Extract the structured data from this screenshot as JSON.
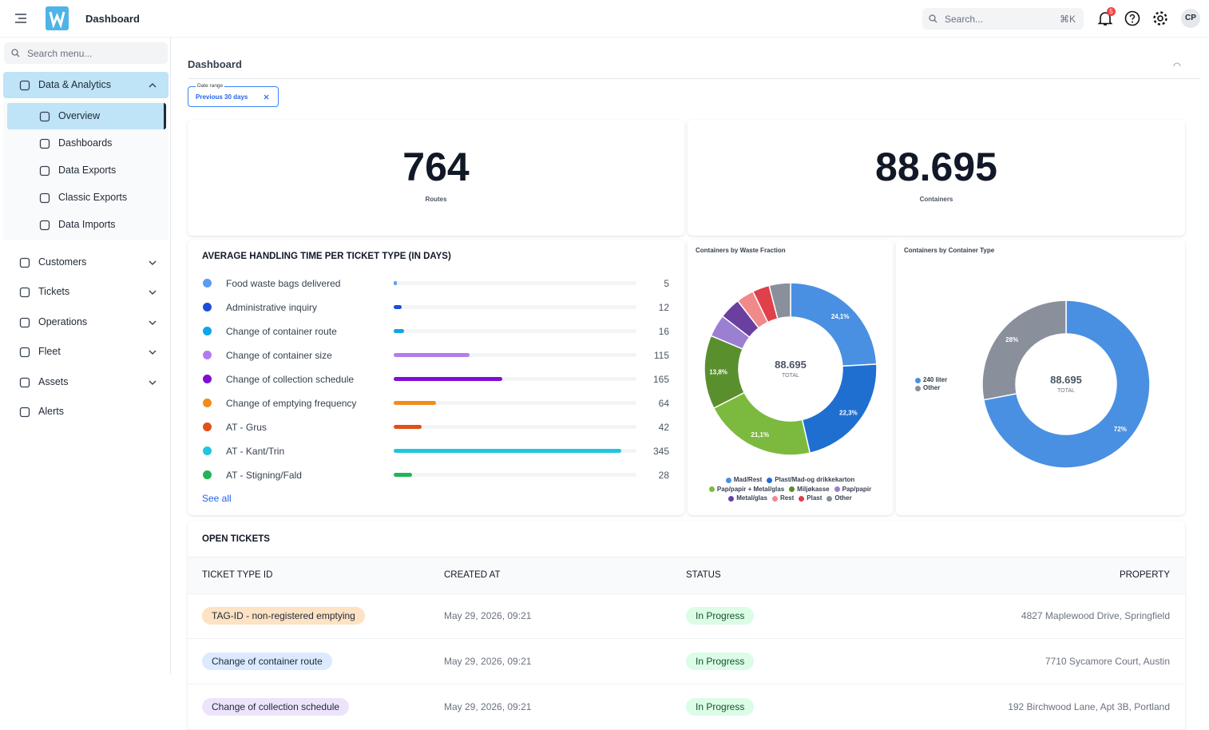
{
  "header": {
    "title": "Dashboard",
    "search_placeholder": "Search...",
    "search_shortcut": "⌘K",
    "notification_count": 5,
    "user_initials": "CP"
  },
  "sidebar": {
    "search_placeholder": "Search menu...",
    "groups": [
      {
        "label": "Data & Analytics",
        "expandable": true,
        "items": [
          "Overview",
          "Dashboards",
          "Data Exports",
          "Classic Exports",
          "Data Imports"
        ]
      },
      {
        "label": "Customers",
        "expandable": true
      },
      {
        "label": "Tickets",
        "expandable": true
      },
      {
        "label": "Operations",
        "expandable": true
      },
      {
        "label": "Fleet",
        "expandable": true
      },
      {
        "label": "Assets",
        "expandable": true
      },
      {
        "label": "Alerts",
        "expandable": false
      }
    ]
  },
  "page": {
    "title": "Dashboard",
    "filter": {
      "label": "Date range",
      "value": "Previous 30 days"
    }
  },
  "kpis": [
    {
      "value": "764",
      "label": "Routes"
    },
    {
      "value": "88.695",
      "label": "Containers"
    }
  ],
  "chart_data": [
    {
      "type": "bar",
      "orientation": "horizontal",
      "title": "AVERAGE HANDLING TIME PER TICKET TYPE (IN DAYS)",
      "categories": [
        "Food waste bags delivered",
        "Administrative inquiry",
        "Change of container route",
        "Change of container size",
        "Change of collection schedule",
        "Change of emptying frequency",
        "AT - Grus",
        "AT - Kant/Trin",
        "AT - Stigning/Fald"
      ],
      "values": [
        5,
        12,
        16,
        115,
        165,
        64,
        42,
        345,
        28
      ],
      "colors": [
        "#5b9cf0",
        "#1d4ed8",
        "#0ea5e9",
        "#b57bee",
        "#7e0fd4",
        "#f28c1c",
        "#e0501b",
        "#22c5e0",
        "#22b455"
      ],
      "link": "See all"
    },
    {
      "type": "donut",
      "title": "Containers by Waste Fraction",
      "center_value": "88.695",
      "center_label": "TOTAL",
      "categories": [
        "Mad/Rest",
        "Plast/Mad-og drikkekarton",
        "Pap/papir + Metal/glas",
        "Miljøkasse",
        "Pap/papir",
        "Metal/glas",
        "Rest",
        "Plast",
        "Other"
      ],
      "values": [
        24.1,
        22.3,
        21.1,
        13.8,
        4.2,
        4.0,
        3.3,
        3.2,
        4.0
      ],
      "value_labels": [
        "24,1%",
        "22,3%",
        "21,1%",
        "13,8%",
        null,
        null,
        null,
        null,
        null
      ],
      "colors": [
        "#4a90e2",
        "#1f6fd1",
        "#7cba3f",
        "#5a8f2e",
        "#9b7fd1",
        "#6a3fa0",
        "#f08a8a",
        "#e0404a",
        "#8a8f9c"
      ],
      "legend": "bottom"
    },
    {
      "type": "donut",
      "title": "Containers by Container Type",
      "center_value": "88.695",
      "center_label": "TOTAL",
      "categories": [
        "240 liter",
        "Other"
      ],
      "values": [
        72,
        28
      ],
      "value_labels": [
        "72%",
        "28%"
      ],
      "colors": [
        "#4a90e2",
        "#8a8f9c"
      ],
      "legend": "left"
    }
  ],
  "table": {
    "title": "OPEN TICKETS",
    "columns": [
      "TICKET TYPE ID",
      "CREATED AT",
      "STATUS",
      "PROPERTY"
    ],
    "rows": [
      [
        "TAG-ID - non-registered emptying",
        "May 29, 2026, 09:21",
        "In Progress",
        "4827 Maplewood Drive, Springfield"
      ],
      [
        "Change of container route",
        "May 29, 2026, 09:21",
        "In Progress",
        "7710 Sycamore Court, Austin"
      ],
      [
        "Change of collection schedule",
        "May 29, 2026, 09:21",
        "In Progress",
        "192 Birchwood Lane, Apt 3B, Portland"
      ]
    ]
  }
}
